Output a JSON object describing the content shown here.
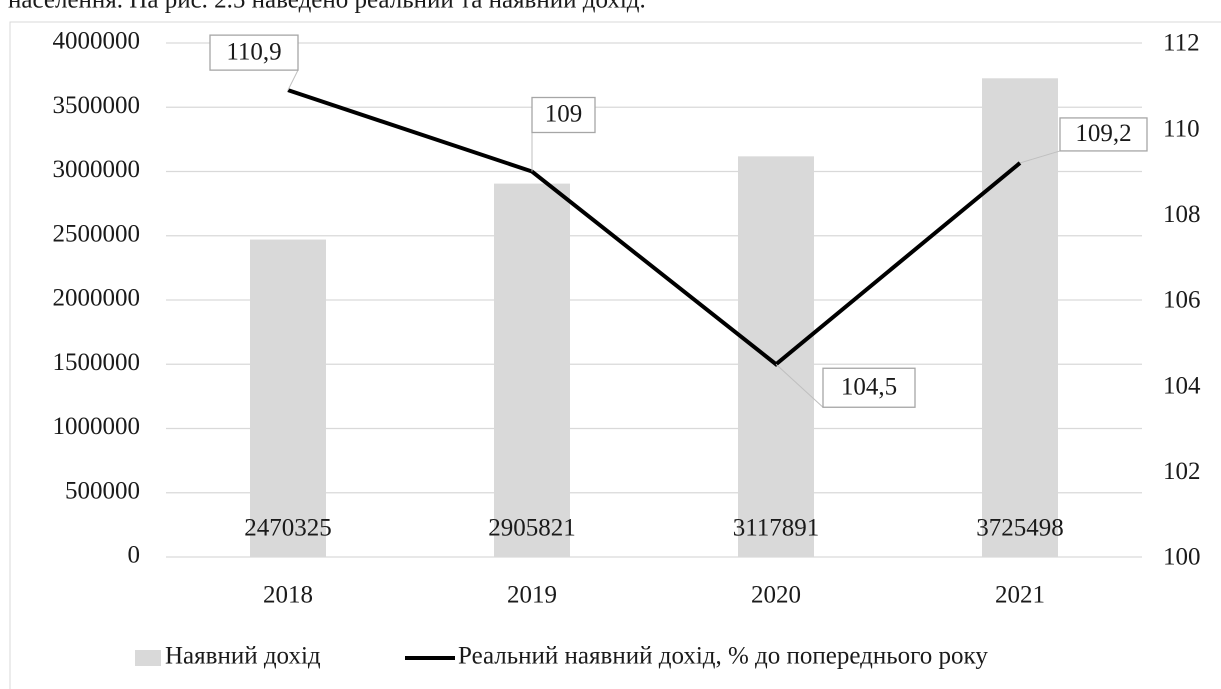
{
  "caption": "населення. На рис. 2.5 наведено реальний та наявний дохід.",
  "chart_data": {
    "type": "bar",
    "categories": [
      "2018",
      "2019",
      "2020",
      "2021"
    ],
    "series": [
      {
        "name": "Наявний дохід",
        "type": "bar",
        "color": "#d9d9d9",
        "values": [
          2470325,
          2905821,
          3117891,
          3725498
        ]
      },
      {
        "name": "Реальний наявний дохід,  % до попереднього року",
        "type": "line",
        "axis": "y2",
        "color": "#000000",
        "values": [
          110.9,
          109,
          104.5,
          109.2
        ],
        "value_labels": [
          "110,9",
          "109",
          "104,5",
          "109,2"
        ]
      }
    ],
    "ylim": [
      0,
      4000000
    ],
    "yticks": [
      0,
      500000,
      1000000,
      1500000,
      2000000,
      2500000,
      3000000,
      3500000,
      4000000
    ],
    "y2lim": [
      100,
      112
    ],
    "y2ticks": [
      100,
      102,
      104,
      106,
      108,
      110,
      112
    ],
    "grid": true,
    "legend": "bottom"
  }
}
